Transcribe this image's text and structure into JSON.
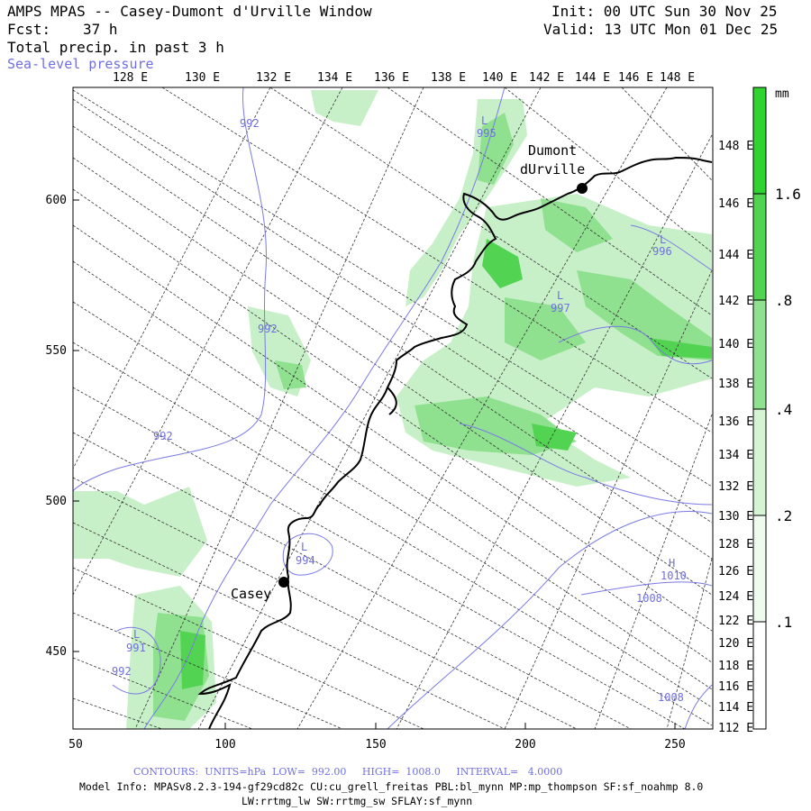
{
  "header": {
    "title": "AMPS MPAS -- Casey-Dumont d'Urville Window",
    "init": "Init: 00 UTC Sun 30 Nov 25",
    "fcst_label": "Fcst:",
    "fcst_value": "37 h",
    "valid": "Valid: 13 UTC Mon 01 Dec 25",
    "field1": "Total precip. in past 3 h",
    "field2": "Sea-level pressure"
  },
  "top_lon_labels": [
    "128 E",
    "130 E",
    "132 E",
    "134 E",
    "136 E",
    "138 E",
    "140 E",
    "142 E",
    "144 E",
    "146 E",
    "148 E"
  ],
  "right_lon_labels": [
    "148 E",
    "146 E",
    "144 E",
    "142 E",
    "140 E",
    "138 E",
    "136 E",
    "134 E",
    "132 E",
    "130 E",
    "128 E",
    "126 E",
    "124 E",
    "122 E",
    "120 E",
    "118 E",
    "116 E",
    "114 E",
    "112 E"
  ],
  "y_axis_labels": [
    "600",
    "550",
    "500",
    "450"
  ],
  "x_axis_labels": [
    "50",
    "100",
    "150",
    "200",
    "250"
  ],
  "colorbar": {
    "unit": "mm",
    "labels": [
      "1.6",
      ".8",
      ".4",
      ".2",
      ".1"
    ]
  },
  "stations": [
    {
      "name": "Casey"
    },
    {
      "name_line1": "Dumont",
      "name_line2": "dUrville"
    }
  ],
  "contour_labels": [
    {
      "text": "992"
    },
    {
      "text": "995"
    },
    {
      "text": "996"
    },
    {
      "text": "997"
    },
    {
      "text": "992"
    },
    {
      "text": "992"
    },
    {
      "text": "994"
    },
    {
      "text": "1010"
    },
    {
      "text": "1008"
    },
    {
      "text": "991"
    },
    {
      "text": "992"
    },
    {
      "text": "1008"
    },
    {
      "text": "L"
    },
    {
      "text": "L"
    },
    {
      "text": "L"
    },
    {
      "text": "L"
    },
    {
      "text": "L"
    },
    {
      "text": "H"
    }
  ],
  "footer": {
    "contours": "CONTOURS:  UNITS=hPa  LOW=  992.00     HIGH=  1008.0     INTERVAL=   4.0000",
    "model_line1": "Model Info: MPASv8.2.3-194-gf29cd82c CU:cu_grell_freitas PBL:bl_mynn MP:mp_thompson SF:sf_noahmp 8.0",
    "model_line2": "LW:rrtmg_lw SW:rrtmg_sw SFLAY:sf_mynn"
  },
  "colors": {
    "precip_light": "#c8f0c8",
    "precip_mid": "#8fe08f",
    "precip_strong": "#52d452",
    "precip_max": "#2fd42f",
    "contour": "#7a7ae6",
    "coast": "#000000",
    "grid": "#333333"
  }
}
